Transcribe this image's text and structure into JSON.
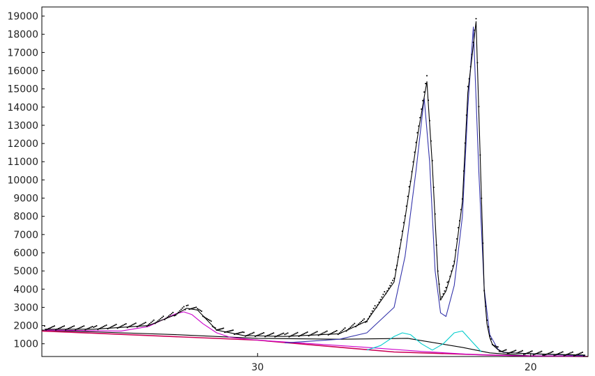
{
  "chart_data": {
    "type": "line",
    "title": "",
    "xlabel": "",
    "ylabel": "",
    "x_reversed": true,
    "xlim": [
      37.9,
      17.9
    ],
    "ylim": [
      300,
      19500
    ],
    "grid": false,
    "legend": "none",
    "xticks": [
      30,
      20
    ],
    "yticks": [
      1000,
      2000,
      3000,
      4000,
      5000,
      6000,
      7000,
      8000,
      9000,
      10000,
      11000,
      12000,
      13000,
      14000,
      15000,
      16000,
      17000,
      18000,
      19000
    ],
    "series": [
      {
        "role": "observed",
        "color": "#000000",
        "style": "dots",
        "x": [
          37.8,
          36.0,
          34.0,
          33.0,
          32.6,
          32.2,
          31.5,
          30.5,
          29.0,
          27.0,
          26.0,
          25.0,
          24.6,
          24.1,
          23.8,
          23.6,
          23.4,
          23.3,
          23.1,
          22.8,
          22.5,
          22.3,
          22.0,
          21.8,
          21.7,
          21.6,
          21.5,
          21.4,
          21.2,
          21.0,
          20.5,
          19.5,
          18.0
        ],
        "y": [
          1850,
          1850,
          2050,
          2650,
          3000,
          2900,
          1800,
          1500,
          1450,
          1600,
          2300,
          4500,
          8000,
          13000,
          15600,
          11000,
          5000,
          3500,
          4000,
          5500,
          9000,
          15000,
          18800,
          9000,
          4000,
          2200,
          1400,
          1000,
          700,
          550,
          500,
          450,
          400
        ]
      },
      {
        "role": "fitted-sum",
        "color": "#000000",
        "style": "line",
        "x": [
          37.8,
          36.0,
          34.0,
          33.0,
          32.6,
          32.2,
          31.5,
          30.5,
          29.0,
          27.0,
          26.0,
          25.0,
          24.6,
          24.1,
          23.8,
          23.6,
          23.4,
          23.3,
          23.1,
          22.8,
          22.5,
          22.3,
          22.0,
          21.8,
          21.7,
          21.6,
          21.5,
          21.4,
          21.2,
          21.0,
          20.5,
          19.5,
          18.0
        ],
        "y": [
          1800,
          1800,
          2000,
          2600,
          2950,
          2850,
          1750,
          1450,
          1400,
          1550,
          2250,
          4400,
          7900,
          12800,
          15400,
          10800,
          4900,
          3400,
          3900,
          5400,
          8800,
          14800,
          18700,
          8900,
          3900,
          2100,
          1350,
          950,
          680,
          530,
          480,
          430,
          380
        ]
      },
      {
        "role": "peak-1",
        "color": "#cc00cc",
        "style": "line",
        "x": [
          37.8,
          35.0,
          34.0,
          33.5,
          33.0,
          32.7,
          32.4,
          32.0,
          31.5,
          31.0,
          30.0,
          28.0,
          26.0,
          24.0,
          22.0,
          20.0,
          18.0
        ],
        "y": [
          1750,
          1700,
          1950,
          2300,
          2650,
          2750,
          2600,
          2100,
          1600,
          1350,
          1200,
          1000,
          800,
          580,
          400,
          330,
          330
        ]
      },
      {
        "role": "peak-2",
        "color": "#3333aa",
        "style": "line",
        "x": [
          29.0,
          27.0,
          26.0,
          25.0,
          24.6,
          24.2,
          23.9,
          23.7,
          23.5,
          23.3,
          23.1,
          22.8,
          22.5,
          22.3,
          22.1,
          21.9,
          21.7,
          21.5,
          21.2,
          21.0,
          20.0,
          18.0
        ],
        "y": [
          1050,
          1250,
          1600,
          3000,
          5800,
          10500,
          14500,
          11000,
          5000,
          2700,
          2500,
          4200,
          8000,
          14000,
          18400,
          10500,
          4000,
          1500,
          700,
          520,
          450,
          350
        ]
      },
      {
        "role": "peak-3",
        "color": "#00cccc",
        "style": "line",
        "x": [
          26.0,
          25.5,
          25.0,
          24.7,
          24.4,
          24.0,
          23.6,
          23.2,
          22.8,
          22.5,
          22.2,
          21.8
        ],
        "y": [
          650,
          900,
          1400,
          1600,
          1500,
          1000,
          650,
          1000,
          1600,
          1700,
          1200,
          550
        ]
      },
      {
        "role": "baseline",
        "color": "#cc0055",
        "style": "line",
        "x": [
          37.9,
          30.0,
          25.0,
          21.5,
          20.0,
          17.9
        ],
        "y": [
          1700,
          1200,
          550,
          380,
          330,
          300
        ]
      },
      {
        "role": "background",
        "color": "#000000",
        "style": "line",
        "x": [
          37.9,
          33.0,
          30.0,
          27.0,
          24.5,
          22.5,
          21.5,
          20.0,
          17.9
        ],
        "y": [
          1750,
          1500,
          1300,
          1250,
          1300,
          800,
          500,
          330,
          300
        ]
      }
    ]
  }
}
